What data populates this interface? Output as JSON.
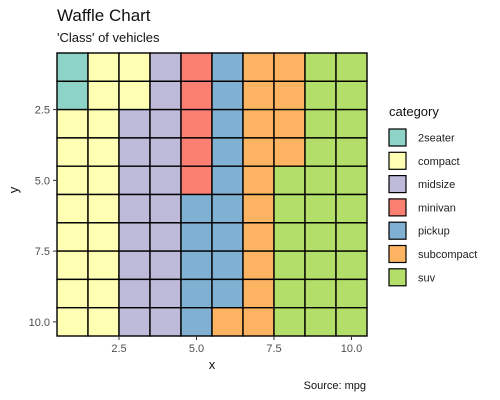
{
  "chart_data": {
    "type": "heatmap",
    "title": "Waffle Chart",
    "subtitle": "'Class' of vehicles",
    "xlabel": "x",
    "ylabel": "y",
    "caption": "Source: mpg",
    "x": [
      1,
      2,
      3,
      4,
      5,
      6,
      7,
      8,
      9,
      10
    ],
    "y": [
      1,
      2,
      3,
      4,
      5,
      6,
      7,
      8,
      9,
      10
    ],
    "x_ticks": [
      "2.5",
      "5.0",
      "7.5",
      "10.0"
    ],
    "y_ticks": [
      "2.5",
      "5.0",
      "7.5",
      "10.0"
    ],
    "y_reversed": true,
    "grid": false,
    "legend_title": "category",
    "legend_position": "right",
    "categories": [
      {
        "name": "2seater",
        "color": "#8DD3C7",
        "cells": 2
      },
      {
        "name": "compact",
        "color": "#FFFFB3",
        "cells": 20
      },
      {
        "name": "midsize",
        "color": "#BEBADA",
        "cells": 18
      },
      {
        "name": "minivan",
        "color": "#FB8072",
        "cells": 5
      },
      {
        "name": "pickup",
        "color": "#80B1D3",
        "cells": 14
      },
      {
        "name": "subcompact",
        "color": "#FDB462",
        "cells": 15
      },
      {
        "name": "suv",
        "color": "#B3DE69",
        "cells": 26
      }
    ],
    "fill_order": "column-major: x from 1 to 10, y from 1 to 10 within each column"
  }
}
